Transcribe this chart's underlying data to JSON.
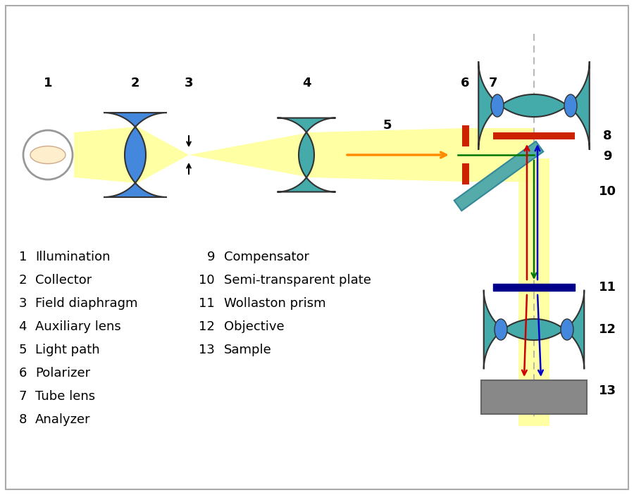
{
  "bg_color": "#ffffff",
  "beam_yellow": "#ffff99",
  "orange_ray": "#ff8c00",
  "green_ray": "#007700",
  "red_ray": "#cc0000",
  "blue_ray": "#0000cc",
  "lens_blue": "#4488dd",
  "lens_teal": "#44aaaa",
  "lens_teal_dark": "#339999",
  "polarizer_red": "#cc2200",
  "analyzer_red": "#cc2200",
  "wollaston_blue": "#00008b",
  "sample_gray": "#888888",
  "bs_teal": "#55aaaa",
  "bs_blue": "#4488cc",
  "dashed_gray": "#aaaaaa",
  "border_gray": "#aaaaaa",
  "label_left": [
    [
      "1",
      "Illumination"
    ],
    [
      "2",
      "Collector"
    ],
    [
      "3",
      "Field diaphragm"
    ],
    [
      "4",
      "Auxiliary lens"
    ],
    [
      "5",
      "Light path"
    ],
    [
      "6",
      "Polarizer"
    ],
    [
      "7",
      "Tube lens"
    ],
    [
      "8",
      "Analyzer"
    ]
  ],
  "label_right": [
    [
      "9",
      "Compensator"
    ],
    [
      "10",
      "Semi-transparent plate"
    ],
    [
      "11",
      "Wollaston prism"
    ],
    [
      "12",
      "Objective"
    ],
    [
      "13",
      "Sample"
    ]
  ]
}
